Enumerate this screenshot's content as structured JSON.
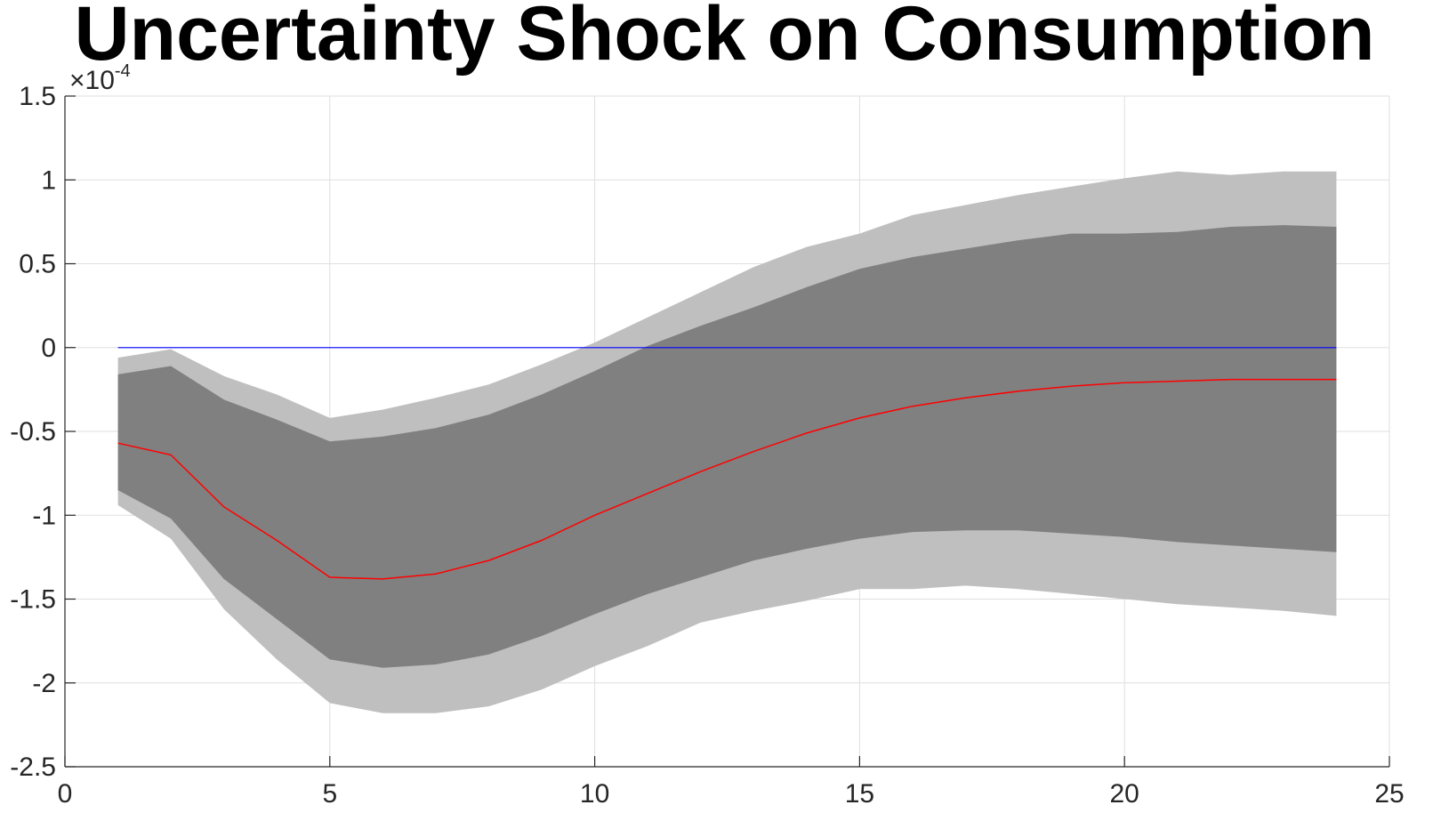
{
  "chart_data": {
    "type": "area",
    "title": "Uncertainty Shock on Consumption",
    "xlabel": "",
    "ylabel": "",
    "exponent_prefix": "×10",
    "exponent_power": "-4",
    "xlim": [
      0,
      25
    ],
    "ylim": [
      -2.5,
      1.5
    ],
    "x_ticks": [
      "0",
      "5",
      "10",
      "15",
      "20",
      "25"
    ],
    "x_tick_values": [
      0,
      5,
      10,
      15,
      20,
      25
    ],
    "y_ticks": [
      "1.5",
      "1",
      "0.5",
      "0",
      "-0.5",
      "-1",
      "-1.5",
      "-2",
      "-2.5"
    ],
    "y_tick_values": [
      1.5,
      1,
      0.5,
      0,
      -0.5,
      -1,
      -1.5,
      -2,
      -2.5
    ],
    "grid": true,
    "x": [
      1,
      2,
      3,
      4,
      5,
      6,
      7,
      8,
      9,
      10,
      11,
      12,
      13,
      14,
      15,
      16,
      17,
      18,
      19,
      20,
      21,
      22,
      23,
      24
    ],
    "series": [
      {
        "role": "band-outer-upper",
        "values": [
          -0.06,
          -0.01,
          -0.17,
          -0.28,
          -0.42,
          -0.37,
          -0.3,
          -0.22,
          -0.1,
          0.03,
          0.18,
          0.33,
          0.48,
          0.6,
          0.68,
          0.79,
          0.85,
          0.91,
          0.96,
          1.01,
          1.05,
          1.03,
          1.05,
          1.05
        ]
      },
      {
        "role": "band-outer-lower",
        "values": [
          -0.94,
          -1.14,
          -1.56,
          -1.86,
          -2.12,
          -2.18,
          -2.18,
          -2.14,
          -2.04,
          -1.9,
          -1.78,
          -1.64,
          -1.57,
          -1.51,
          -1.44,
          -1.44,
          -1.42,
          -1.44,
          -1.47,
          -1.5,
          -1.53,
          -1.55,
          -1.57,
          -1.6
        ]
      },
      {
        "role": "band-inner-upper",
        "values": [
          -0.16,
          -0.11,
          -0.31,
          -0.43,
          -0.56,
          -0.53,
          -0.48,
          -0.4,
          -0.28,
          -0.14,
          0.01,
          0.13,
          0.24,
          0.36,
          0.47,
          0.54,
          0.59,
          0.64,
          0.68,
          0.68,
          0.69,
          0.72,
          0.73,
          0.72
        ]
      },
      {
        "role": "band-inner-lower",
        "values": [
          -0.85,
          -1.02,
          -1.38,
          -1.62,
          -1.86,
          -1.91,
          -1.89,
          -1.83,
          -1.72,
          -1.59,
          -1.47,
          -1.37,
          -1.27,
          -1.2,
          -1.14,
          -1.1,
          -1.09,
          -1.09,
          -1.11,
          -1.13,
          -1.16,
          -1.18,
          -1.2,
          -1.22
        ]
      },
      {
        "role": "median",
        "values": [
          -0.57,
          -0.64,
          -0.95,
          -1.15,
          -1.37,
          -1.38,
          -1.35,
          -1.27,
          -1.15,
          -1.0,
          -0.87,
          -0.74,
          -0.62,
          -0.51,
          -0.42,
          -0.35,
          -0.3,
          -0.26,
          -0.23,
          -0.21,
          -0.2,
          -0.19,
          -0.19,
          -0.19
        ]
      },
      {
        "role": "zero-line",
        "values": [
          0,
          0,
          0,
          0,
          0,
          0,
          0,
          0,
          0,
          0,
          0,
          0,
          0,
          0,
          0,
          0,
          0,
          0,
          0,
          0,
          0,
          0,
          0,
          0
        ]
      }
    ],
    "colors": {
      "band_outer": "#bfbfbf",
      "band_inner": "#808080",
      "median": "#ff0000",
      "zero_line": "#0000ff",
      "grid": "#dfdfdf",
      "axis": "#262626"
    }
  }
}
